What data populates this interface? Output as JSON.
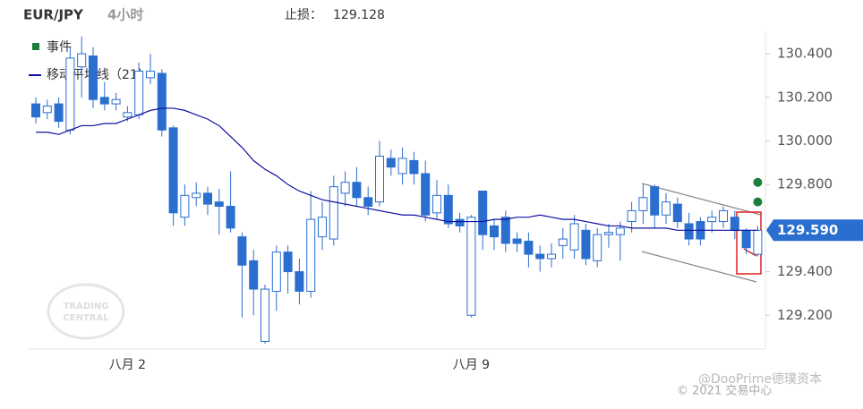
{
  "chart_data": {
    "type": "candlestick",
    "title": "EUR/JPY",
    "timeframe": "4小时",
    "stop_loss_label": "止损：",
    "stop_loss": "129.128",
    "categories": [
      null,
      null,
      null,
      null,
      null,
      null,
      null,
      null,
      "八月 2",
      null,
      null,
      null,
      null,
      null,
      null,
      null,
      null,
      null,
      null,
      null,
      null,
      null,
      null,
      null,
      null,
      null,
      null,
      null,
      null,
      null,
      null,
      null,
      null,
      null,
      null,
      null,
      null,
      null,
      "八月 9",
      null,
      null,
      null,
      null,
      null,
      null,
      null,
      null,
      null,
      null,
      null,
      null,
      null,
      null,
      null,
      null,
      null,
      null,
      null,
      null,
      null,
      null,
      null,
      null,
      null
    ],
    "open": [
      130.17,
      130.13,
      130.17,
      130.05,
      130.34,
      130.39,
      130.2,
      130.17,
      130.11,
      130.12,
      130.29,
      130.31,
      130.06,
      129.65,
      129.74,
      129.76,
      129.72,
      129.7,
      129.56,
      129.45,
      129.08,
      129.31,
      129.49,
      129.4,
      129.31,
      129.56,
      129.55,
      129.76,
      129.81,
      129.74,
      129.72,
      129.92,
      129.85,
      129.91,
      129.85,
      129.67,
      129.75,
      129.64,
      129.2,
      129.77,
      129.61,
      129.65,
      129.55,
      129.54,
      129.48,
      129.46,
      129.52,
      129.5,
      129.59,
      129.45,
      129.57,
      129.57,
      129.63,
      129.68,
      129.79,
      129.66,
      129.71,
      129.62,
      129.63,
      129.63,
      129.63,
      129.65,
      129.59,
      129.48
    ],
    "high": [
      130.2,
      130.19,
      130.2,
      130.43,
      130.48,
      130.43,
      130.27,
      130.22,
      130.16,
      130.36,
      130.4,
      130.33,
      130.07,
      129.8,
      129.81,
      129.79,
      129.78,
      129.86,
      129.58,
      129.5,
      129.34,
      129.52,
      129.52,
      129.46,
      129.77,
      129.72,
      129.84,
      129.86,
      129.88,
      129.79,
      130.0,
      129.96,
      129.97,
      129.95,
      129.91,
      129.82,
      129.8,
      129.67,
      129.66,
      129.77,
      129.64,
      129.68,
      129.58,
      129.58,
      129.52,
      129.53,
      129.6,
      129.66,
      129.62,
      129.6,
      129.62,
      129.63,
      129.72,
      129.8,
      129.8,
      129.76,
      129.74,
      129.67,
      129.65,
      129.68,
      129.7,
      129.68,
      129.6,
      129.61
    ],
    "low": [
      130.08,
      130.1,
      130.06,
      130.03,
      130.2,
      130.15,
      130.14,
      130.14,
      130.09,
      130.1,
      130.26,
      130.02,
      129.61,
      129.61,
      129.7,
      129.66,
      129.57,
      129.58,
      129.19,
      129.2,
      129.07,
      129.22,
      129.3,
      129.25,
      129.28,
      129.5,
      129.52,
      129.7,
      129.7,
      129.66,
      129.7,
      129.84,
      129.8,
      129.8,
      129.63,
      129.64,
      129.6,
      129.58,
      129.19,
      129.5,
      129.5,
      129.49,
      129.49,
      129.42,
      129.4,
      129.42,
      129.46,
      129.46,
      129.43,
      129.42,
      129.51,
      129.45,
      129.58,
      129.62,
      129.6,
      129.62,
      129.6,
      129.52,
      129.52,
      129.58,
      129.6,
      129.55,
      129.48,
      129.47
    ],
    "close": [
      130.11,
      130.16,
      130.09,
      130.38,
      130.4,
      130.19,
      130.17,
      130.19,
      130.13,
      130.32,
      130.32,
      130.05,
      129.67,
      129.75,
      129.76,
      129.71,
      129.7,
      129.6,
      129.43,
      129.32,
      129.32,
      129.49,
      129.4,
      129.31,
      129.64,
      129.65,
      129.79,
      129.81,
      129.74,
      129.7,
      129.93,
      129.88,
      129.92,
      129.85,
      129.66,
      129.75,
      129.62,
      129.61,
      129.65,
      129.57,
      129.56,
      129.53,
      129.53,
      129.48,
      129.46,
      129.48,
      129.55,
      129.62,
      129.46,
      129.57,
      129.58,
      129.6,
      129.68,
      129.74,
      129.66,
      129.72,
      129.63,
      129.55,
      129.55,
      129.65,
      129.68,
      129.59,
      129.51,
      129.59
    ],
    "candle_color": "#2a6ecf",
    "moving_average": {
      "name": "移动平均线（21）",
      "color": "#1010a0",
      "values": [
        130.04,
        130.04,
        130.03,
        130.05,
        130.07,
        130.07,
        130.08,
        130.08,
        130.1,
        130.12,
        130.14,
        130.15,
        130.15,
        130.14,
        130.12,
        130.1,
        130.07,
        130.02,
        129.97,
        129.91,
        129.87,
        129.84,
        129.8,
        129.77,
        129.75,
        129.73,
        129.72,
        129.71,
        129.7,
        129.69,
        129.68,
        129.67,
        129.66,
        129.66,
        129.65,
        129.64,
        129.63,
        129.63,
        129.63,
        129.63,
        129.64,
        129.64,
        129.65,
        129.65,
        129.66,
        129.65,
        129.64,
        129.64,
        129.63,
        129.62,
        129.61,
        129.61,
        129.6,
        129.6,
        129.6,
        129.6,
        129.59,
        129.59,
        129.59,
        129.59,
        129.59,
        129.59,
        129.59,
        129.59
      ]
    },
    "events": {
      "name": "事件",
      "color": "#1a7f3a",
      "values": [
        129.81,
        129.72
      ]
    },
    "current_price": {
      "value": 129.59,
      "label": "129.590"
    },
    "ylim": [
      129.045,
      130.503
    ],
    "yticks": [
      {
        "value": 129.2,
        "label": "129.200"
      },
      {
        "value": 129.4,
        "label": "129.400"
      },
      {
        "value": 129.6,
        "label": "129.600"
      },
      {
        "value": 129.8,
        "label": "129.800"
      },
      {
        "value": 130.0,
        "label": "130.000"
      },
      {
        "value": 130.2,
        "label": "130.200"
      },
      {
        "value": 130.4,
        "label": "130.400"
      }
    ],
    "watermark": [
      "TRADING",
      "CENTRAL"
    ],
    "copyright": "© 2021 交易中心",
    "credit": "@DooPrime德璞资本"
  }
}
